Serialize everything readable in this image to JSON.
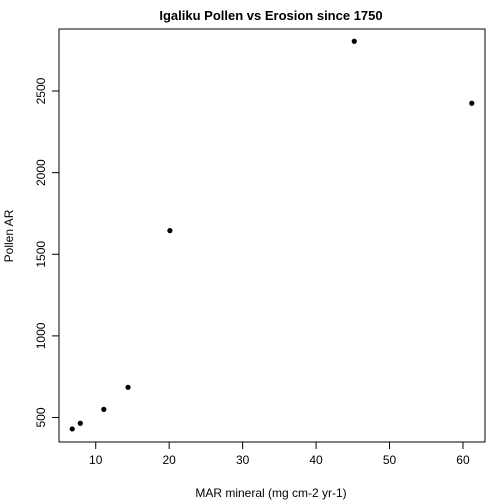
{
  "chart_data": {
    "type": "scatter",
    "title": "Igaliku Pollen vs Erosion since 1750",
    "xlabel": "MAR mineral (mg cm-2 yr-1)",
    "ylabel": "Pollen AR",
    "xlim": [
      5,
      63
    ],
    "ylim": [
      350,
      2880
    ],
    "xticks": [
      10,
      20,
      30,
      40,
      50,
      60
    ],
    "yticks": [
      500,
      1000,
      1500,
      2000,
      2500
    ],
    "xtick_labels": [
      "10",
      "20",
      "30",
      "40",
      "50",
      "60"
    ],
    "ytick_labels": [
      "500",
      "1000",
      "1500",
      "2000",
      "2500"
    ],
    "grid": false,
    "points": [
      {
        "x": 6.8,
        "y": 430
      },
      {
        "x": 7.9,
        "y": 465
      },
      {
        "x": 11.1,
        "y": 550
      },
      {
        "x": 14.4,
        "y": 685
      },
      {
        "x": 20.1,
        "y": 1645
      },
      {
        "x": 45.2,
        "y": 2805
      },
      {
        "x": 61.2,
        "y": 2425
      }
    ]
  }
}
